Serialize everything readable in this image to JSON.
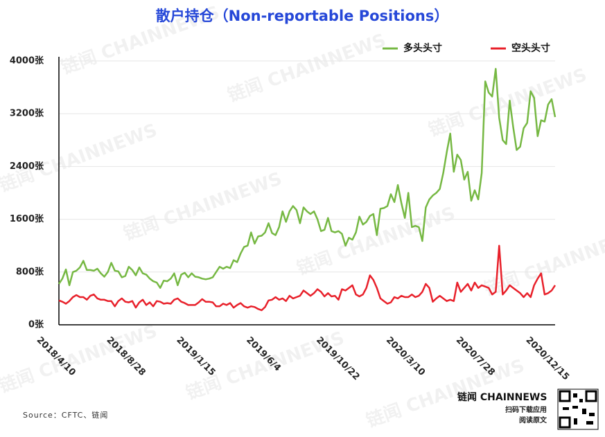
{
  "chart_data": {
    "type": "line",
    "title": "散户持仓（Non-reportable Positions）",
    "source": "Source：CFTC、链闻",
    "watermark": "链闻 CHAINNEWS",
    "logo": {
      "brand": "链闻 CHAINNEWS",
      "line1": "扫码下载应用",
      "line2": "阅读原文"
    },
    "categories": [
      "2018/4/10",
      null,
      null,
      null,
      null,
      null,
      null,
      null,
      null,
      null,
      null,
      null,
      null,
      null,
      null,
      null,
      null,
      null,
      null,
      null,
      "2018/8/28",
      null,
      null,
      null,
      null,
      null,
      null,
      null,
      null,
      null,
      null,
      null,
      null,
      null,
      null,
      null,
      null,
      null,
      null,
      null,
      "2019/1/15",
      null,
      null,
      null,
      null,
      null,
      null,
      null,
      null,
      null,
      null,
      null,
      null,
      null,
      null,
      null,
      null,
      null,
      null,
      null,
      "2019/6/4",
      null,
      null,
      null,
      null,
      null,
      null,
      null,
      null,
      null,
      null,
      null,
      null,
      null,
      null,
      null,
      null,
      null,
      null,
      null,
      "2019/10/22",
      null,
      null,
      null,
      null,
      null,
      null,
      null,
      null,
      null,
      null,
      null,
      null,
      null,
      null,
      null,
      null,
      null,
      null,
      null,
      "2020/3/10",
      null,
      null,
      null,
      null,
      null,
      null,
      null,
      null,
      null,
      null,
      null,
      null,
      null,
      null,
      null,
      null,
      null,
      null,
      null,
      "2020/7/28",
      null,
      null,
      null,
      null,
      null,
      null,
      null,
      null,
      null,
      null,
      null,
      null,
      null,
      null,
      null,
      null,
      null,
      null,
      null,
      "2020/12/15",
      null,
      null
    ],
    "series": [
      {
        "name": "多头头寸",
        "color": "#76b843",
        "values": [
          620,
          700,
          840,
          600,
          800,
          820,
          870,
          970,
          830,
          830,
          820,
          850,
          780,
          730,
          800,
          940,
          820,
          810,
          720,
          740,
          880,
          830,
          750,
          870,
          780,
          760,
          700,
          660,
          640,
          560,
          670,
          660,
          700,
          780,
          600,
          760,
          790,
          720,
          780,
          730,
          720,
          700,
          690,
          700,
          720,
          800,
          880,
          850,
          880,
          860,
          980,
          950,
          1080,
          1180,
          1200,
          1400,
          1230,
          1340,
          1350,
          1400,
          1540,
          1390,
          1360,
          1480,
          1720,
          1560,
          1720,
          1800,
          1740,
          1540,
          1780,
          1720,
          1680,
          1720,
          1600,
          1420,
          1440,
          1620,
          1420,
          1400,
          1420,
          1380,
          1200,
          1320,
          1290,
          1400,
          1640,
          1520,
          1560,
          1650,
          1680,
          1360,
          1760,
          1770,
          1800,
          1980,
          1860,
          2120,
          1850,
          1620,
          2000,
          1480,
          1500,
          1480,
          1270,
          1780,
          1900,
          1960,
          2000,
          2060,
          2300,
          2620,
          2900,
          2320,
          2580,
          2500,
          2200,
          2320,
          1880,
          2040,
          1900,
          2300,
          3690,
          3520,
          3460,
          3880,
          3140,
          2800,
          2740,
          3400,
          3000,
          2650,
          2700,
          2980,
          3060,
          3540,
          3440,
          2860,
          3100,
          3080,
          3340,
          3420,
          3150
        ]
      },
      {
        "name": "空头头寸",
        "color": "#e8202a",
        "values": [
          370,
          350,
          320,
          360,
          420,
          450,
          420,
          420,
          380,
          440,
          460,
          400,
          380,
          380,
          360,
          360,
          280,
          360,
          400,
          350,
          340,
          360,
          260,
          340,
          380,
          300,
          340,
          280,
          360,
          350,
          320,
          330,
          320,
          380,
          400,
          350,
          330,
          300,
          300,
          300,
          340,
          390,
          350,
          350,
          340,
          280,
          280,
          320,
          300,
          330,
          260,
          300,
          330,
          280,
          260,
          280,
          270,
          240,
          220,
          270,
          370,
          380,
          420,
          380,
          400,
          360,
          440,
          400,
          420,
          440,
          520,
          480,
          440,
          480,
          540,
          500,
          430,
          480,
          430,
          440,
          380,
          540,
          520,
          560,
          600,
          460,
          430,
          460,
          560,
          750,
          680,
          560,
          400,
          360,
          320,
          340,
          420,
          400,
          440,
          420,
          420,
          460,
          420,
          440,
          500,
          620,
          560,
          350,
          400,
          440,
          400,
          360,
          380,
          360,
          640,
          500,
          560,
          620,
          520,
          640,
          560,
          600,
          580,
          560,
          460,
          500,
          1200,
          460,
          520,
          600,
          560,
          520,
          480,
          420,
          480,
          420,
          600,
          700,
          780,
          460,
          480,
          520,
          600
        ]
      }
    ],
    "ylim": [
      0,
      4000
    ],
    "yticks": [
      {
        "value": 0,
        "label": "0张"
      },
      {
        "value": 800,
        "label": "800张"
      },
      {
        "value": 1600,
        "label": "1600张"
      },
      {
        "value": 2400,
        "label": "2400张"
      },
      {
        "value": 3200,
        "label": "3200张"
      },
      {
        "value": 4000,
        "label": "4000张"
      }
    ],
    "grid": true,
    "legend": "top-right"
  }
}
